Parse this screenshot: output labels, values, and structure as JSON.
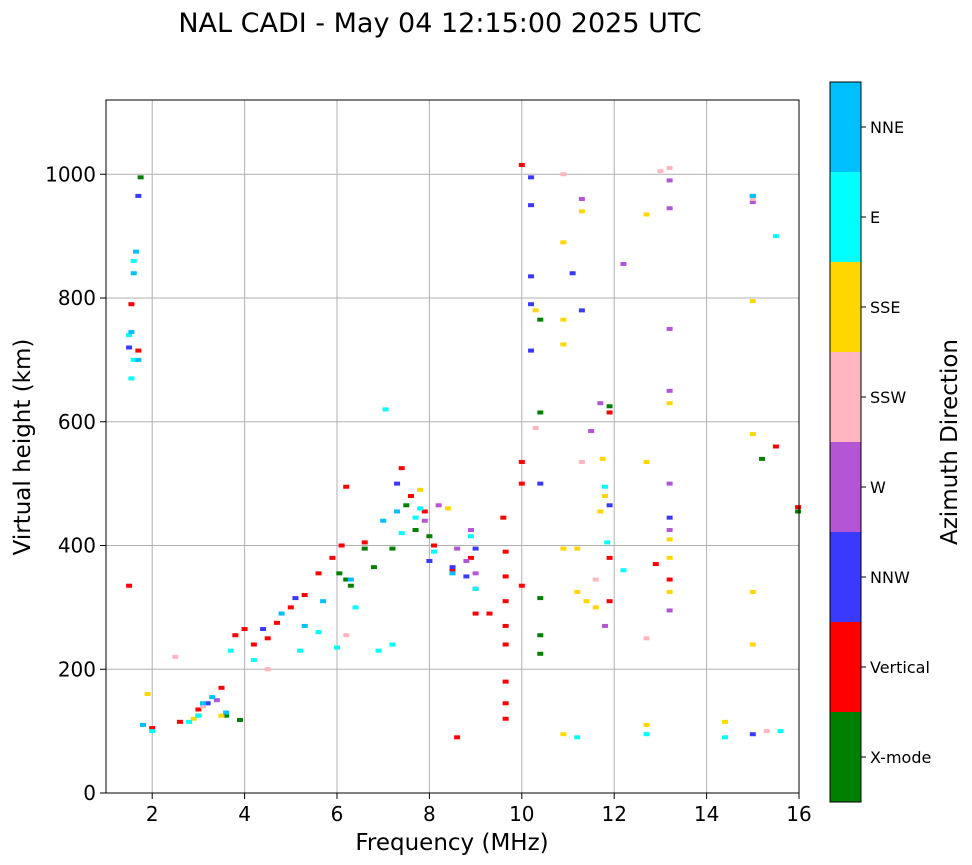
{
  "chart_data": {
    "type": "scatter",
    "title": "NAL CADI - May 04 12:15:00 2025 UTC",
    "xlabel": "Frequency (MHz)",
    "ylabel": "Virtual height (km)",
    "xlim": [
      1,
      16
    ],
    "ylim": [
      0,
      1120
    ],
    "xticks": [
      2,
      4,
      6,
      8,
      10,
      12,
      14,
      16
    ],
    "yticks": [
      0,
      200,
      400,
      600,
      800,
      1000
    ],
    "grid": true,
    "colorbar": {
      "title": "Azimuth Direction",
      "categories": [
        {
          "name": "X-mode",
          "color": "#008000"
        },
        {
          "name": "Vertical",
          "color": "#ff0000"
        },
        {
          "name": "NNW",
          "color": "#3a3aff"
        },
        {
          "name": "W",
          "color": "#b455d6"
        },
        {
          "name": "SSW",
          "color": "#ffb6c1"
        },
        {
          "name": "SSE",
          "color": "#ffd700"
        },
        {
          "name": "E",
          "color": "#00ffff"
        },
        {
          "name": "NNE",
          "color": "#00bfff"
        }
      ]
    },
    "series": [
      {
        "name": "X-mode",
        "points": [
          [
            1.75,
            995
          ],
          [
            3.0,
            125
          ],
          [
            3.6,
            125
          ],
          [
            3.9,
            118
          ],
          [
            6.05,
            355
          ],
          [
            6.2,
            345
          ],
          [
            6.3,
            335
          ],
          [
            6.6,
            395
          ],
          [
            6.8,
            365
          ],
          [
            7.2,
            395
          ],
          [
            7.5,
            465
          ],
          [
            7.7,
            425
          ],
          [
            8.0,
            415
          ],
          [
            10.4,
            765
          ],
          [
            10.4,
            615
          ],
          [
            10.4,
            315
          ],
          [
            10.4,
            255
          ],
          [
            10.4,
            225
          ],
          [
            11.9,
            625
          ],
          [
            15.2,
            540
          ],
          [
            15.98,
            455
          ]
        ]
      },
      {
        "name": "Vertical",
        "points": [
          [
            1.5,
            335
          ],
          [
            1.55,
            790
          ],
          [
            1.7,
            715
          ],
          [
            2.0,
            105
          ],
          [
            2.6,
            115
          ],
          [
            3.0,
            135
          ],
          [
            3.5,
            170
          ],
          [
            3.8,
            255
          ],
          [
            4.0,
            265
          ],
          [
            4.2,
            240
          ],
          [
            4.5,
            250
          ],
          [
            4.7,
            275
          ],
          [
            5.0,
            300
          ],
          [
            5.3,
            320
          ],
          [
            5.6,
            355
          ],
          [
            5.9,
            380
          ],
          [
            6.1,
            400
          ],
          [
            6.2,
            495
          ],
          [
            6.6,
            405
          ],
          [
            7.4,
            525
          ],
          [
            7.6,
            480
          ],
          [
            7.9,
            455
          ],
          [
            8.1,
            400
          ],
          [
            8.5,
            360
          ],
          [
            8.6,
            90
          ],
          [
            8.9,
            380
          ],
          [
            9.0,
            330
          ],
          [
            9.0,
            290
          ],
          [
            9.3,
            290
          ],
          [
            9.65,
            390
          ],
          [
            9.65,
            350
          ],
          [
            9.65,
            310
          ],
          [
            9.65,
            270
          ],
          [
            9.65,
            240
          ],
          [
            9.65,
            180
          ],
          [
            9.65,
            145
          ],
          [
            9.65,
            120
          ],
          [
            9.6,
            445
          ],
          [
            10.0,
            535
          ],
          [
            10.0,
            500
          ],
          [
            10.0,
            335
          ],
          [
            10.0,
            1015
          ],
          [
            11.9,
            615
          ],
          [
            11.9,
            380
          ],
          [
            11.9,
            310
          ],
          [
            12.9,
            370
          ],
          [
            13.2,
            345
          ],
          [
            15.5,
            560
          ],
          [
            15.98,
            462
          ]
        ]
      },
      {
        "name": "NNW",
        "points": [
          [
            1.5,
            720
          ],
          [
            1.7,
            965
          ],
          [
            3.2,
            145
          ],
          [
            4.4,
            265
          ],
          [
            5.1,
            315
          ],
          [
            7.3,
            500
          ],
          [
            8.0,
            375
          ],
          [
            8.5,
            365
          ],
          [
            8.8,
            350
          ],
          [
            9.0,
            395
          ],
          [
            10.2,
            995
          ],
          [
            10.2,
            950
          ],
          [
            10.2,
            835
          ],
          [
            10.2,
            790
          ],
          [
            10.2,
            715
          ],
          [
            10.4,
            500
          ],
          [
            11.1,
            840
          ],
          [
            11.3,
            780
          ],
          [
            11.9,
            465
          ],
          [
            13.2,
            445
          ],
          [
            15.0,
            95
          ]
        ]
      },
      {
        "name": "W",
        "points": [
          [
            3.4,
            150
          ],
          [
            7.9,
            440
          ],
          [
            8.2,
            465
          ],
          [
            8.6,
            395
          ],
          [
            8.8,
            375
          ],
          [
            8.9,
            425
          ],
          [
            9.0,
            355
          ],
          [
            11.3,
            960
          ],
          [
            11.5,
            585
          ],
          [
            11.7,
            630
          ],
          [
            11.8,
            270
          ],
          [
            12.2,
            855
          ],
          [
            13.2,
            990
          ],
          [
            13.2,
            945
          ],
          [
            13.2,
            750
          ],
          [
            13.2,
            650
          ],
          [
            13.2,
            500
          ],
          [
            13.2,
            425
          ],
          [
            13.2,
            295
          ],
          [
            15.0,
            965
          ],
          [
            15.0,
            955
          ]
        ]
      },
      {
        "name": "SSW",
        "points": [
          [
            2.5,
            220
          ],
          [
            3.1,
            140
          ],
          [
            4.5,
            200
          ],
          [
            6.2,
            255
          ],
          [
            10.3,
            590
          ],
          [
            10.9,
            1000
          ],
          [
            11.3,
            535
          ],
          [
            11.6,
            345
          ],
          [
            12.7,
            250
          ],
          [
            13.2,
            1010
          ],
          [
            13.0,
            1005
          ],
          [
            15.0,
            960
          ],
          [
            15.3,
            100
          ]
        ]
      },
      {
        "name": "SSE",
        "points": [
          [
            1.9,
            160
          ],
          [
            2.9,
            120
          ],
          [
            3.5,
            125
          ],
          [
            7.8,
            490
          ],
          [
            8.4,
            460
          ],
          [
            10.3,
            780
          ],
          [
            10.9,
            890
          ],
          [
            10.9,
            725
          ],
          [
            10.9,
            765
          ],
          [
            10.9,
            95
          ],
          [
            10.9,
            395
          ],
          [
            11.2,
            395
          ],
          [
            11.2,
            325
          ],
          [
            11.3,
            940
          ],
          [
            11.4,
            310
          ],
          [
            11.6,
            300
          ],
          [
            11.7,
            455
          ],
          [
            11.75,
            540
          ],
          [
            11.8,
            480
          ],
          [
            12.7,
            935
          ],
          [
            12.7,
            535
          ],
          [
            12.7,
            110
          ],
          [
            13.2,
            630
          ],
          [
            13.2,
            410
          ],
          [
            13.2,
            380
          ],
          [
            13.2,
            325
          ],
          [
            14.4,
            115
          ],
          [
            15.0,
            795
          ],
          [
            15.0,
            580
          ],
          [
            15.0,
            325
          ],
          [
            15.0,
            240
          ]
        ]
      },
      {
        "name": "E",
        "points": [
          [
            1.5,
            740
          ],
          [
            1.55,
            670
          ],
          [
            1.6,
            700
          ],
          [
            1.6,
            860
          ],
          [
            2.0,
            100
          ],
          [
            2.8,
            115
          ],
          [
            3.0,
            125
          ],
          [
            3.7,
            230
          ],
          [
            4.2,
            215
          ],
          [
            5.2,
            230
          ],
          [
            5.6,
            260
          ],
          [
            6.0,
            235
          ],
          [
            6.4,
            300
          ],
          [
            6.9,
            230
          ],
          [
            7.2,
            240
          ],
          [
            7.05,
            620
          ],
          [
            7.4,
            420
          ],
          [
            7.7,
            445
          ],
          [
            7.8,
            460
          ],
          [
            8.1,
            390
          ],
          [
            8.9,
            415
          ],
          [
            9.0,
            330
          ],
          [
            11.2,
            90
          ],
          [
            11.8,
            495
          ],
          [
            11.85,
            405
          ],
          [
            12.2,
            360
          ],
          [
            12.7,
            95
          ],
          [
            14.4,
            90
          ],
          [
            15.5,
            900
          ],
          [
            15.6,
            100
          ]
        ]
      },
      {
        "name": "NNE",
        "points": [
          [
            1.55,
            745
          ],
          [
            1.6,
            840
          ],
          [
            1.65,
            875
          ],
          [
            1.7,
            700
          ],
          [
            1.8,
            110
          ],
          [
            3.1,
            145
          ],
          [
            3.3,
            155
          ],
          [
            3.6,
            130
          ],
          [
            4.8,
            290
          ],
          [
            5.3,
            270
          ],
          [
            5.7,
            310
          ],
          [
            6.3,
            345
          ],
          [
            7.0,
            440
          ],
          [
            7.3,
            455
          ],
          [
            8.5,
            355
          ],
          [
            15.0,
            965
          ]
        ]
      }
    ]
  }
}
